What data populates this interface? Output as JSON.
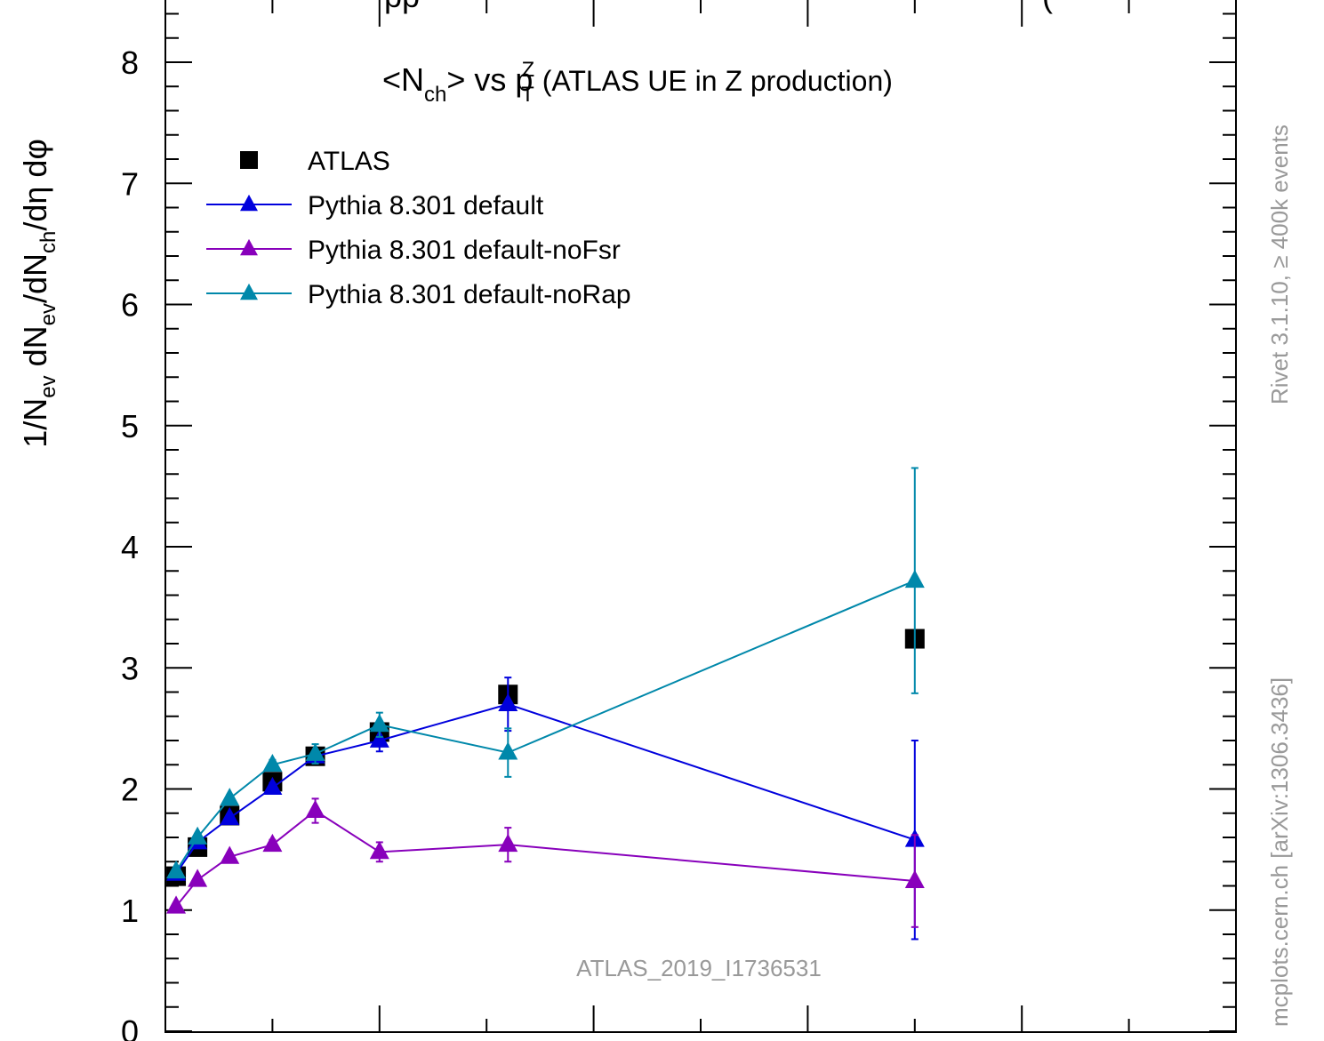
{
  "chart_data": {
    "type": "line",
    "title_cut": "pp",
    "title_cut_right": "(",
    "title_main": "<N",
    "title_sub1": "ch",
    "title_mid": "> vs p",
    "title_sup": "Z",
    "title_sub2": "T",
    "title_rest": " (ATLAS UE in Z production)",
    "ylabel": "1/N_ev dN_ev/dN_ch/dη dφ",
    "xlabel": "",
    "ylim": [
      0,
      8.5
    ],
    "xlim": [
      0,
      100
    ],
    "y_ticks": [
      0,
      1,
      2,
      3,
      4,
      5,
      6,
      7,
      8
    ],
    "grid": false,
    "legend_position": "top-left",
    "watermark": "ATLAS_2019_I1736531",
    "side_label_top": "Rivet 3.1.10, ≥ 400k events",
    "side_label_bottom": "mcplots.cern.ch [arXiv:1306.3436]",
    "series": [
      {
        "name": "ATLAS",
        "color": "#000000",
        "marker": "square",
        "line": false,
        "x": [
          1,
          3,
          6,
          10,
          14,
          20,
          32,
          70
        ],
        "y": [
          1.28,
          1.52,
          1.78,
          2.06,
          2.27,
          2.47,
          2.78,
          3.24
        ],
        "err": [
          0,
          0,
          0,
          0,
          0,
          0,
          0,
          0
        ]
      },
      {
        "name": "Pythia 8.301 default",
        "color": "#0000dd",
        "marker": "triangle",
        "line": true,
        "x": [
          1,
          3,
          6,
          10,
          14,
          20,
          32,
          70
        ],
        "y": [
          1.3,
          1.56,
          1.76,
          2.01,
          2.27,
          2.4,
          2.7,
          1.58
        ],
        "err": [
          0.02,
          0.03,
          0.03,
          0.04,
          0.05,
          0.09,
          0.22,
          0.82
        ]
      },
      {
        "name": "Pythia 8.301 default-noFsr",
        "color": "#8800bb",
        "marker": "triangle",
        "line": true,
        "x": [
          1,
          3,
          6,
          10,
          14,
          20,
          32,
          70
        ],
        "y": [
          1.03,
          1.25,
          1.44,
          1.54,
          1.82,
          1.48,
          1.54,
          1.24
        ],
        "err": [
          0.02,
          0.02,
          0.03,
          0.04,
          0.1,
          0.08,
          0.14,
          0.38
        ]
      },
      {
        "name": "Pythia 8.301 default-noRap",
        "color": "#0088aa",
        "marker": "triangle",
        "line": true,
        "x": [
          1,
          3,
          6,
          10,
          14,
          20,
          32,
          70
        ],
        "y": [
          1.32,
          1.6,
          1.92,
          2.2,
          2.29,
          2.53,
          2.3,
          3.72
        ],
        "err": [
          0.02,
          0.03,
          0.03,
          0.04,
          0.08,
          0.1,
          0.2,
          0.93
        ]
      }
    ]
  }
}
